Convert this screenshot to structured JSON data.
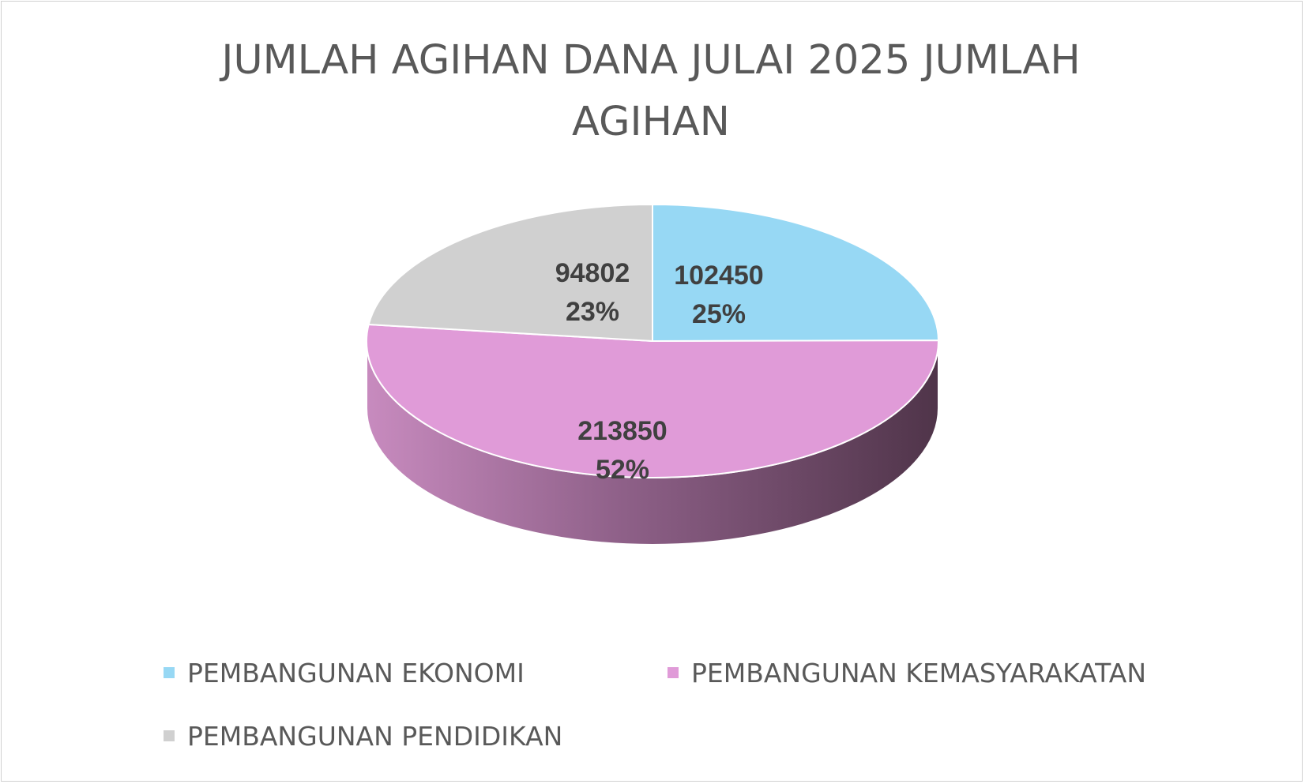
{
  "chart_data": {
    "type": "pie",
    "title": "JUMLAH AGIHAN DANA JULAI 2025 JUMLAH AGIHAN",
    "categories": [
      "PEMBANGUNAN EKONOMI",
      "PEMBANGUNAN KEMASYARAKATAN",
      "PEMBANGUNAN PENDIDIKAN"
    ],
    "values": [
      102450,
      213850,
      94802
    ],
    "percent_labels": [
      "25%",
      "52%",
      "23%"
    ],
    "value_labels": [
      "102450",
      "213850",
      "94802"
    ],
    "colors": [
      "#97d8f4",
      "#e09bd8",
      "#d0d0d0"
    ],
    "style": "3d",
    "legend": "bottom"
  },
  "title_line1": "JUMLAH AGIHAN DANA JULAI 2025 JUMLAH",
  "title_line2": "AGIHAN",
  "legend": {
    "items": [
      {
        "label": "PEMBANGUNAN EKONOMI",
        "color": "#97d8f4"
      },
      {
        "label": "PEMBANGUNAN KEMASYARAKATAN",
        "color": "#e09bd8"
      },
      {
        "label": "PEMBANGUNAN PENDIDIKAN",
        "color": "#d0d0d0"
      }
    ]
  }
}
